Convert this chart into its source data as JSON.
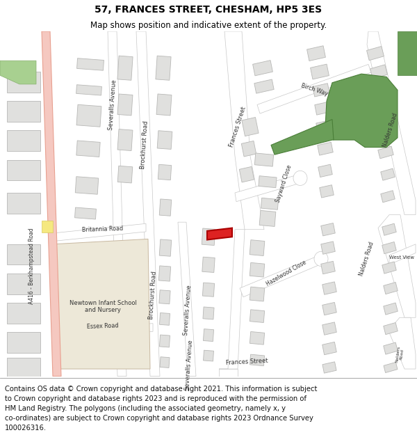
{
  "title": "57, FRANCES STREET, CHESHAM, HP5 3ES",
  "subtitle": "Map shows position and indicative extent of the property.",
  "footer_lines": [
    "Contains OS data © Crown copyright and database right 2021. This information is subject",
    "to Crown copyright and database rights 2023 and is reproduced with the permission of",
    "HM Land Registry. The polygons (including the associated geometry, namely x, y",
    "co-ordinates) are subject to Crown copyright and database rights 2023 Ordnance Survey",
    "100026316."
  ],
  "bg_color": "#f2f2ee",
  "road_color": "#ffffff",
  "road_outline_color": "#c8c8c8",
  "building_fill": "#e0e0de",
  "building_edge": "#b8b8b6",
  "major_road_fill": "#f5c8c0",
  "major_road_edge": "#e8a090",
  "highlight_fill": "#dd2222",
  "highlight_edge": "#aa0000",
  "green_fill": "#6a9e58",
  "green_edge": "#4a7e38",
  "yellow_fill": "#f5e880",
  "school_fill": "#ede8d8",
  "title_fontsize": 10,
  "subtitle_fontsize": 8.5,
  "footer_fontsize": 7.2,
  "label_fontsize": 6.0,
  "label_color": "#333333"
}
